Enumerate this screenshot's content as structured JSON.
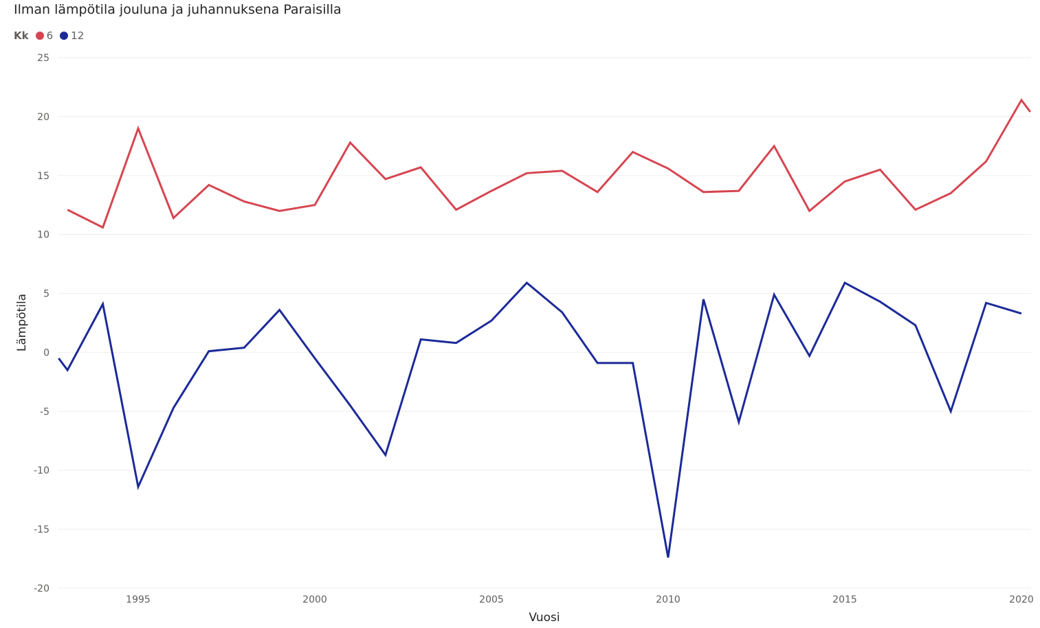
{
  "chart_data": {
    "type": "line",
    "title": "Ilman lämpötila jouluna ja juhannuksena Paraisilla",
    "xlabel": "Vuosi",
    "ylabel": "Lämpötila",
    "legend_title": "Kk",
    "legend_position": "top-left",
    "grid": true,
    "ylim": [
      -20,
      25
    ],
    "y_ticks": [
      25,
      20,
      15,
      10,
      5,
      0,
      -5,
      -10,
      -15,
      -20
    ],
    "x_ticks": [
      1995,
      2000,
      2005,
      2010,
      2015,
      2020
    ],
    "series": [
      {
        "name": "6",
        "color": "#d64550",
        "x": [
          1993,
          1994,
          1995,
          1996,
          1997,
          1998,
          1999,
          2000,
          2001,
          2002,
          2003,
          2004,
          2005,
          2006,
          2007,
          2008,
          2009,
          2010,
          2011,
          2012,
          2013,
          2014,
          2015,
          2016,
          2017,
          2018,
          2019,
          2020,
          2020.25
        ],
        "values": [
          12.1,
          10.6,
          19.0,
          11.4,
          14.2,
          12.8,
          12.0,
          12.5,
          17.8,
          14.7,
          15.7,
          12.1,
          13.7,
          15.2,
          15.4,
          13.6,
          17.0,
          15.6,
          13.6,
          13.7,
          17.5,
          12.0,
          14.5,
          15.5,
          12.1,
          13.5,
          16.2,
          21.4,
          20.4
        ]
      },
      {
        "name": "12",
        "color": "#1c2a98",
        "x": [
          1992.75,
          1993,
          1994,
          1995,
          1996,
          1997,
          1998,
          1999,
          2000,
          2001,
          2002,
          2003,
          2004,
          2005,
          2006,
          2007,
          2008,
          2009,
          2010,
          2011,
          2012,
          2013,
          2014,
          2015,
          2016,
          2017,
          2018,
          2019,
          2020
        ],
        "values": [
          -0.5,
          -1.5,
          4.1,
          -11.4,
          -4.7,
          0.1,
          0.4,
          3.6,
          -0.5,
          -4.5,
          -8.7,
          1.1,
          0.8,
          2.7,
          5.9,
          3.4,
          -0.9,
          -0.9,
          -17.4,
          4.5,
          -5.9,
          4.9,
          -0.3,
          5.9,
          4.3,
          2.3,
          -5.0,
          4.2,
          3.3
        ]
      }
    ]
  }
}
